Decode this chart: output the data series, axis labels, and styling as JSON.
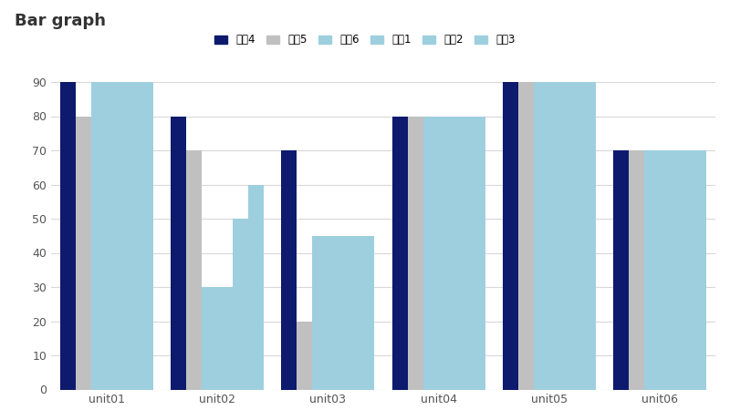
{
  "title": "Bar graph",
  "categories": [
    "unit01",
    "unit02",
    "unit03",
    "unit04",
    "unit05",
    "unit06"
  ],
  "series": [
    {
      "label": "초등4",
      "color": "#0d1a6e",
      "values": [
        90,
        80,
        70,
        80,
        90,
        70
      ]
    },
    {
      "label": "초등5",
      "color": "#c0c0c0",
      "values": [
        80,
        70,
        20,
        80,
        90,
        70
      ]
    },
    {
      "label": "초등6",
      "color": "#9ecfdf",
      "values": [
        90,
        30,
        45,
        80,
        90,
        70
      ]
    },
    {
      "label": "중등1",
      "color": "#9ecfdf",
      "values": [
        90,
        30,
        45,
        80,
        90,
        70
      ]
    },
    {
      "label": "중등2",
      "color": "#9ecfdf",
      "values": [
        90,
        50,
        45,
        80,
        90,
        70
      ]
    },
    {
      "label": "중등3",
      "color": "#9ecfdf",
      "values": [
        90,
        60,
        45,
        80,
        90,
        70
      ]
    }
  ],
  "ylim": [
    0,
    90
  ],
  "yticks": [
    0,
    10,
    20,
    30,
    40,
    50,
    60,
    70,
    80,
    90
  ],
  "background_color": "#ffffff",
  "grid_color": "#d8d8d8",
  "title_fontsize": 13,
  "legend_fontsize": 8.5,
  "tick_fontsize": 9,
  "bar_width": 0.14,
  "figure_width": 8.0,
  "figure_height": 4.5
}
